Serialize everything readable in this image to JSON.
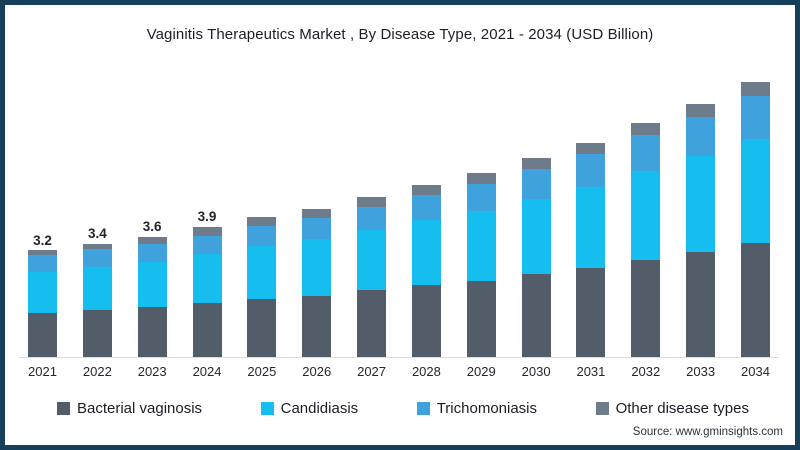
{
  "page": {
    "title": "Vaginitis Therapeutics Market , By Disease Type, 2021 - 2034 (USD Billion)",
    "source": "Source: www.gminsights.com"
  },
  "colors": {
    "frame_border": "#163F5A",
    "axis_line": "#DBDBDB",
    "bacterial_vaginosis": "#535D6A",
    "candidiasis": "#16BEF0",
    "trichomoniasis": "#3FA2DC",
    "other_disease_types": "#6E7B8A"
  },
  "chart_data": {
    "type": "bar",
    "stacked": true,
    "title": "Vaginitis Therapeutics Market , By Disease Type, 2021 - 2034 (USD Billion)",
    "unit": "USD Billion",
    "categories": [
      "2021",
      "2022",
      "2023",
      "2024",
      "2025",
      "2026",
      "2027",
      "2028",
      "2029",
      "2030",
      "2031",
      "2032",
      "2033",
      "2034"
    ],
    "series": [
      {
        "name": "Bacterial vaginosis",
        "color": "#535D6A",
        "values": [
          1.35,
          1.43,
          1.51,
          1.63,
          1.76,
          1.86,
          2.01,
          2.16,
          2.3,
          2.49,
          2.68,
          2.93,
          3.16,
          3.43
        ]
      },
      {
        "name": "Candidiasis",
        "color": "#16BEF0",
        "values": [
          1.2,
          1.28,
          1.36,
          1.47,
          1.58,
          1.68,
          1.81,
          1.94,
          2.07,
          2.24,
          2.41,
          2.64,
          2.85,
          3.09
        ]
      },
      {
        "name": "Trichomoniasis",
        "color": "#3FA2DC",
        "values": [
          0.52,
          0.52,
          0.52,
          0.53,
          0.58,
          0.62,
          0.68,
          0.74,
          0.81,
          0.89,
          0.97,
          1.07,
          1.16,
          1.28
        ]
      },
      {
        "name": "Other disease types",
        "color": "#6E7B8A",
        "values": [
          0.13,
          0.17,
          0.21,
          0.27,
          0.28,
          0.29,
          0.3,
          0.31,
          0.32,
          0.33,
          0.34,
          0.36,
          0.38,
          0.4
        ]
      }
    ],
    "totals": [
      3.2,
      3.4,
      3.6,
      3.9,
      4.2,
      4.45,
      4.8,
      5.15,
      5.5,
      5.95,
      6.4,
      7.0,
      7.55,
      8.2
    ],
    "bar_total_labels": [
      "3.2",
      "3.4",
      "3.6",
      "3.9",
      "",
      "",
      "",
      "",
      "",
      "",
      "",
      "",
      "",
      ""
    ],
    "ylim": [
      0,
      8.45
    ],
    "grid": false,
    "legend_position": "bottom"
  }
}
